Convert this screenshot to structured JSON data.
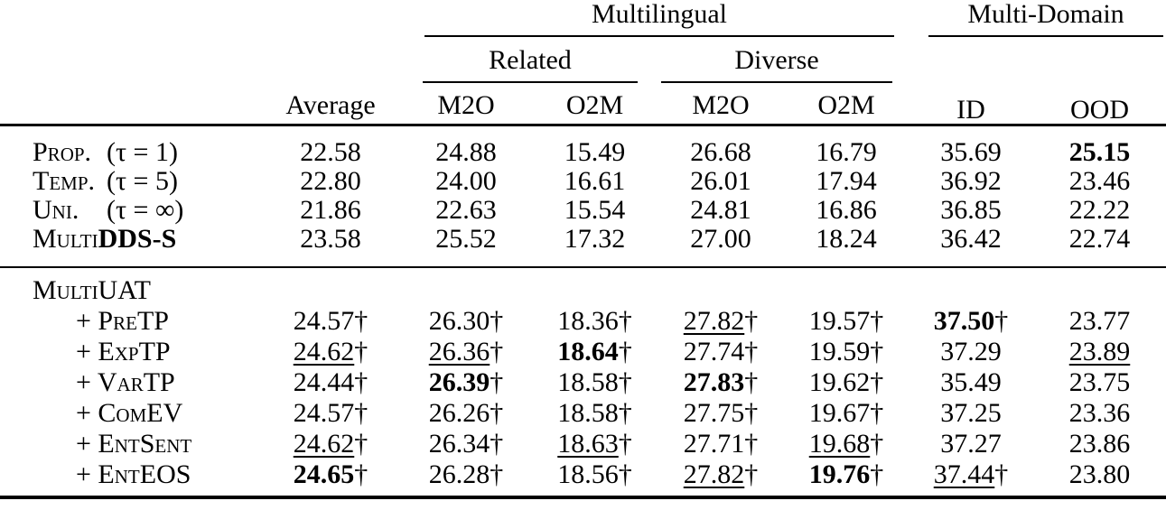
{
  "colors": {
    "text": "#000000",
    "background": "#ffffff",
    "rules": "#000000"
  },
  "table": {
    "dagger": "†",
    "header": {
      "multilingual": "Multilingual",
      "multi_domain": "Multi-Domain",
      "related": "Related",
      "diverse": "Diverse",
      "id": "ID",
      "ood": "OOD",
      "average": "Average",
      "related_m2o": "M2O",
      "related_o2m": "O2M",
      "diverse_m2o": "M2O",
      "diverse_o2m": "O2M"
    },
    "sections": [
      {
        "rows": [
          {
            "label": "Prop.",
            "math": "(τ = 1)",
            "cells": [
              {
                "v": "22.58"
              },
              {
                "v": "24.88"
              },
              {
                "v": "15.49"
              },
              {
                "v": "26.68"
              },
              {
                "v": "16.79"
              },
              {
                "v": "35.69"
              },
              {
                "v": "25.15",
                "b": true
              }
            ]
          },
          {
            "label": "Temp.",
            "math": "(τ = 5)",
            "cells": [
              {
                "v": "22.80"
              },
              {
                "v": "24.00"
              },
              {
                "v": "16.61"
              },
              {
                "v": "26.01"
              },
              {
                "v": "17.94"
              },
              {
                "v": "36.92"
              },
              {
                "v": "23.46"
              }
            ]
          },
          {
            "label": "Uni.",
            "math": "(τ = ∞)",
            "cells": [
              {
                "v": "21.86"
              },
              {
                "v": "22.63"
              },
              {
                "v": "15.54"
              },
              {
                "v": "24.81"
              },
              {
                "v": "16.86"
              },
              {
                "v": "36.85"
              },
              {
                "v": "22.22"
              }
            ]
          },
          {
            "label": "Multi",
            "bold_suffix": "DDS-S",
            "cells": [
              {
                "v": "23.58"
              },
              {
                "v": "25.52"
              },
              {
                "v": "17.32"
              },
              {
                "v": "27.00"
              },
              {
                "v": "18.24"
              },
              {
                "v": "36.42"
              },
              {
                "v": "22.74"
              }
            ]
          }
        ]
      },
      {
        "rows": [
          {
            "label": "MultiUAT",
            "section_header": true,
            "cells": []
          },
          {
            "label": "+ PreTP",
            "indent": true,
            "cells": [
              {
                "v": "24.57",
                "dag": true
              },
              {
                "v": "26.30",
                "dag": true
              },
              {
                "v": "18.36",
                "dag": true
              },
              {
                "v": "27.82",
                "dag": true,
                "u": true
              },
              {
                "v": "19.57",
                "dag": true
              },
              {
                "v": "37.50",
                "dag": true,
                "b": true
              },
              {
                "v": "23.77"
              }
            ]
          },
          {
            "label": "+ ExpTP",
            "indent": true,
            "cells": [
              {
                "v": "24.62",
                "dag": true,
                "u": true
              },
              {
                "v": "26.36",
                "dag": true,
                "u": true
              },
              {
                "v": "18.64",
                "dag": true,
                "b": true
              },
              {
                "v": "27.74",
                "dag": true
              },
              {
                "v": "19.59",
                "dag": true
              },
              {
                "v": "37.29"
              },
              {
                "v": "23.89",
                "u": true
              }
            ]
          },
          {
            "label": "+ VarTP",
            "indent": true,
            "cells": [
              {
                "v": "24.44",
                "dag": true
              },
              {
                "v": "26.39",
                "dag": true,
                "b": true
              },
              {
                "v": "18.58",
                "dag": true
              },
              {
                "v": "27.83",
                "dag": true,
                "b": true
              },
              {
                "v": "19.62",
                "dag": true
              },
              {
                "v": "35.49"
              },
              {
                "v": "23.75"
              }
            ]
          },
          {
            "label": "+ ComEV",
            "indent": true,
            "cells": [
              {
                "v": "24.57",
                "dag": true
              },
              {
                "v": "26.26",
                "dag": true
              },
              {
                "v": "18.58",
                "dag": true
              },
              {
                "v": "27.75",
                "dag": true
              },
              {
                "v": "19.67",
                "dag": true
              },
              {
                "v": "37.25"
              },
              {
                "v": "23.36"
              }
            ]
          },
          {
            "label": "+ EntSent",
            "indent": true,
            "cells": [
              {
                "v": "24.62",
                "dag": true,
                "u": true
              },
              {
                "v": "26.34",
                "dag": true
              },
              {
                "v": "18.63",
                "dag": true,
                "u": true
              },
              {
                "v": "27.71",
                "dag": true
              },
              {
                "v": "19.68",
                "dag": true,
                "u": true
              },
              {
                "v": "37.27"
              },
              {
                "v": "23.86"
              }
            ]
          },
          {
            "label": "+ EntEOS",
            "indent": true,
            "cells": [
              {
                "v": "24.65",
                "dag": true,
                "b": true
              },
              {
                "v": "26.28",
                "dag": true
              },
              {
                "v": "18.56",
                "dag": true
              },
              {
                "v": "27.82",
                "dag": true,
                "u": true
              },
              {
                "v": "19.76",
                "dag": true,
                "b": true
              },
              {
                "v": "37.44",
                "dag": true,
                "u": true
              },
              {
                "v": "23.80"
              }
            ]
          }
        ]
      }
    ]
  }
}
